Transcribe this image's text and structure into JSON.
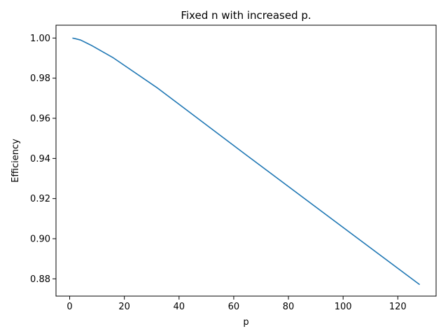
{
  "chart_data": {
    "type": "line",
    "title": "Fixed n with increased p.",
    "xlabel": "p",
    "ylabel": "Efficiency",
    "xlim": [
      -5,
      134
    ],
    "ylim": [
      0.8714,
      1.0064
    ],
    "xticks": [
      0,
      20,
      40,
      60,
      80,
      100,
      120
    ],
    "xtick_labels": [
      "0",
      "20",
      "40",
      "60",
      "80",
      "100",
      "120"
    ],
    "yticks": [
      0.88,
      0.9,
      0.92,
      0.94,
      0.96,
      0.98,
      1.0
    ],
    "ytick_labels": [
      "0.88",
      "0.90",
      "0.92",
      "0.94",
      "0.96",
      "0.98",
      "1.00"
    ],
    "grid": false,
    "series": [
      {
        "color": "#1f77b4",
        "x": [
          1,
          2,
          4,
          8,
          16,
          32,
          64,
          128
        ],
        "y": [
          1.0,
          0.9997,
          0.999,
          0.9963,
          0.9901,
          0.9752,
          0.9423,
          0.8771
        ]
      }
    ]
  }
}
